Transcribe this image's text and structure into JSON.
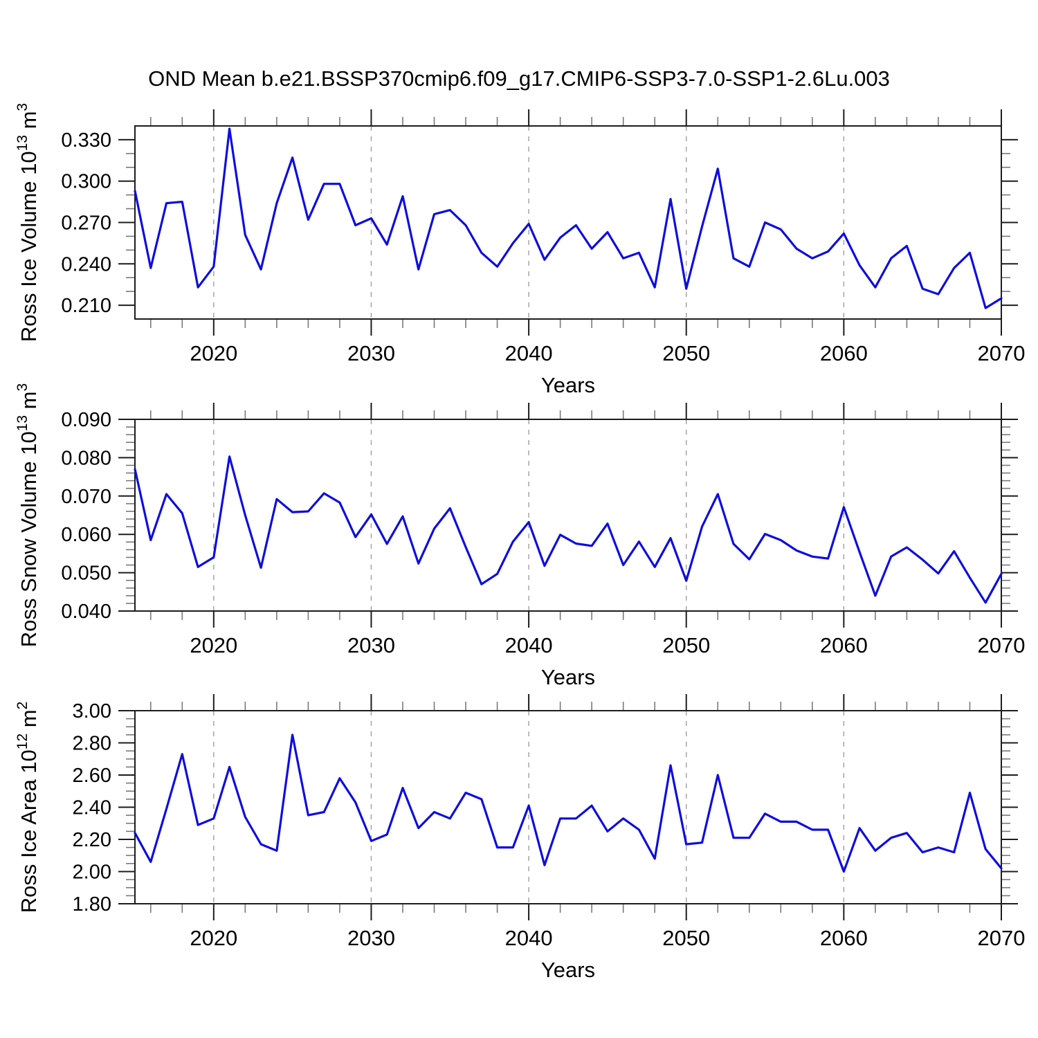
{
  "title": "OND Mean b.e21.BSSP370cmip6.f09_g17.CMIP6-SSP3-7.0-SSP1-2.6Lu.003",
  "chart_data": {
    "type": "line",
    "title": "OND Mean b.e21.BSSP370cmip6.f09_g17.CMIP6-SSP3-7.0-SSP1-2.6Lu.003",
    "xlabel": "Years",
    "legend": "none",
    "grid": "vertical-dashed-at-decades",
    "line_color": "#0d0de0",
    "x_range": [
      2015,
      2070
    ],
    "x_major_ticks": [
      2020,
      2030,
      2040,
      2050,
      2060,
      2070
    ],
    "x_tick_labels": [
      "2020",
      "2030",
      "2040",
      "2050",
      "2060",
      "2070"
    ],
    "x_minor_step": 2,
    "grid_years": [
      2020,
      2030,
      2040,
      2050,
      2060
    ],
    "x": [
      2015,
      2016,
      2017,
      2018,
      2019,
      2020,
      2021,
      2022,
      2023,
      2024,
      2025,
      2026,
      2027,
      2028,
      2029,
      2030,
      2031,
      2032,
      2033,
      2034,
      2035,
      2036,
      2037,
      2038,
      2039,
      2040,
      2041,
      2042,
      2043,
      2044,
      2045,
      2046,
      2047,
      2048,
      2049,
      2050,
      2051,
      2052,
      2053,
      2054,
      2055,
      2056,
      2057,
      2058,
      2059,
      2060,
      2061,
      2062,
      2063,
      2064,
      2065,
      2066,
      2067,
      2068,
      2069,
      2070
    ],
    "panels": [
      {
        "slug": "ross-ice-volume",
        "ylabel": "Ross Ice Volume 10^13 m^3",
        "ylabel_parts": [
          {
            "t": "Ross Ice Volume 10"
          },
          {
            "t": "13",
            "sup": true
          },
          {
            "t": " m"
          },
          {
            "t": "3",
            "sup": true
          }
        ],
        "ylim": [
          0.2,
          0.34
        ],
        "yticks": [
          0.21,
          0.24,
          0.27,
          0.3,
          0.33
        ],
        "ytick_labels": [
          "0.210",
          "0.240",
          "0.270",
          "0.300",
          "0.330"
        ],
        "y_minor_step": 0.01,
        "values": [
          0.293,
          0.237,
          0.284,
          0.285,
          0.223,
          0.238,
          0.338,
          0.261,
          0.236,
          0.284,
          0.317,
          0.272,
          0.298,
          0.298,
          0.268,
          0.273,
          0.254,
          0.289,
          0.236,
          0.276,
          0.279,
          0.268,
          0.248,
          0.238,
          0.255,
          0.269,
          0.243,
          0.259,
          0.268,
          0.251,
          0.263,
          0.244,
          0.248,
          0.223,
          0.287,
          0.222,
          0.267,
          0.309,
          0.244,
          0.238,
          0.27,
          0.265,
          0.251,
          0.244,
          0.249,
          0.262,
          0.239,
          0.223,
          0.244,
          0.253,
          0.222,
          0.218,
          0.237,
          0.248,
          0.208,
          0.215
        ]
      },
      {
        "slug": "ross-snow-volume",
        "ylabel": "Ross Snow Volume 10^13 m^3",
        "ylabel_parts": [
          {
            "t": "Ross Snow Volume 10"
          },
          {
            "t": "13",
            "sup": true
          },
          {
            "t": " m"
          },
          {
            "t": "3",
            "sup": true
          }
        ],
        "ylim": [
          0.04,
          0.09
        ],
        "yticks": [
          0.04,
          0.05,
          0.06,
          0.07,
          0.08,
          0.09
        ],
        "ytick_labels": [
          "0.040",
          "0.050",
          "0.060",
          "0.070",
          "0.080",
          "0.090"
        ],
        "y_minor_step": 0.002,
        "values": [
          0.077,
          0.0585,
          0.0705,
          0.0655,
          0.0515,
          0.054,
          0.0803,
          0.065,
          0.0513,
          0.0692,
          0.0658,
          0.066,
          0.0707,
          0.0683,
          0.0593,
          0.0652,
          0.0575,
          0.0647,
          0.0524,
          0.0615,
          0.0668,
          0.0567,
          0.047,
          0.0497,
          0.0581,
          0.0632,
          0.0518,
          0.0599,
          0.0576,
          0.057,
          0.0628,
          0.052,
          0.0581,
          0.0515,
          0.059,
          0.0479,
          0.062,
          0.0705,
          0.0575,
          0.0535,
          0.0601,
          0.0585,
          0.0558,
          0.0542,
          0.0537,
          0.0671,
          0.0554,
          0.044,
          0.0542,
          0.0566,
          0.0534,
          0.0498,
          0.0556,
          0.0487,
          0.0422,
          0.0497
        ]
      },
      {
        "slug": "ross-ice-area",
        "ylabel": "Ross Ice Area 10^12 m^2",
        "ylabel_parts": [
          {
            "t": "Ross Ice Area 10"
          },
          {
            "t": "12",
            "sup": true
          },
          {
            "t": " m"
          },
          {
            "t": "2",
            "sup": true
          }
        ],
        "ylim": [
          1.8,
          3.0
        ],
        "yticks": [
          1.8,
          2.0,
          2.2,
          2.4,
          2.6,
          2.8,
          3.0
        ],
        "ytick_labels": [
          "1.80",
          "2.00",
          "2.20",
          "2.40",
          "2.60",
          "2.80",
          "3.00"
        ],
        "y_minor_step": 0.05,
        "values": [
          2.24,
          2.06,
          2.39,
          2.73,
          2.29,
          2.33,
          2.65,
          2.34,
          2.17,
          2.13,
          2.85,
          2.35,
          2.37,
          2.58,
          2.43,
          2.19,
          2.23,
          2.52,
          2.27,
          2.37,
          2.33,
          2.49,
          2.45,
          2.15,
          2.15,
          2.41,
          2.04,
          2.33,
          2.33,
          2.41,
          2.25,
          2.33,
          2.26,
          2.08,
          2.66,
          2.17,
          2.18,
          2.6,
          2.21,
          2.21,
          2.36,
          2.31,
          2.31,
          2.26,
          2.26,
          2.0,
          2.27,
          2.13,
          2.21,
          2.24,
          2.12,
          2.15,
          2.12,
          2.49,
          2.14,
          2.02
        ]
      }
    ]
  }
}
